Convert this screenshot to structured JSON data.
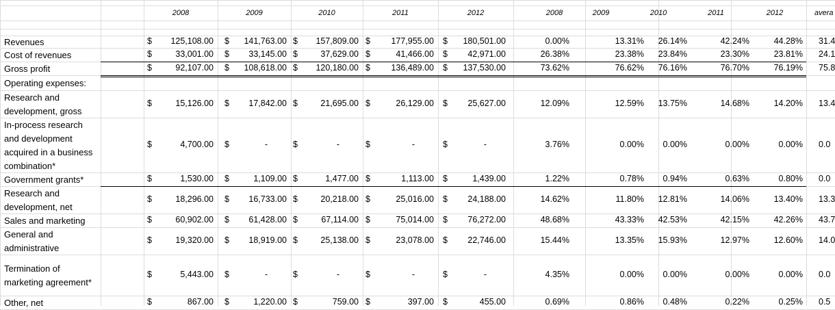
{
  "headers": {
    "years": [
      "2008",
      "2009",
      "2010",
      "2011",
      "2012"
    ],
    "pct_years": [
      "2008",
      "2009",
      "2010",
      "2011",
      "2012"
    ],
    "average": "avera"
  },
  "rows": [
    {
      "label": "Revenues",
      "values": [
        "125,108.00",
        "141,763.00",
        "157,809.00",
        "177,955.00",
        "180,501.00"
      ],
      "pct": [
        "0.00%",
        "13.31%",
        "26.14%",
        "42.24%",
        "44.28%"
      ],
      "avg": "31.4"
    },
    {
      "label": "Cost of revenues",
      "values": [
        "33,001.00",
        "33,145.00",
        "37,629.00",
        "41,466.00",
        "42,971.00"
      ],
      "pct": [
        "26.38%",
        "23.38%",
        "23.84%",
        "23.30%",
        "23.81%"
      ],
      "avg": "24.1"
    },
    {
      "label": "Gross profit",
      "values": [
        "92,107.00",
        "108,618.00",
        "120,180.00",
        "136,489.00",
        "137,530.00"
      ],
      "pct": [
        "73.62%",
        "76.62%",
        "76.16%",
        "76.70%",
        "76.19%"
      ],
      "avg": "75.8"
    },
    {
      "label": "Operating expenses:",
      "values": [],
      "pct": [],
      "avg": ""
    },
    {
      "label": "Research and development, gross",
      "values": [
        "15,126.00",
        "17,842.00",
        "21,695.00",
        "26,129.00",
        "25,627.00"
      ],
      "pct": [
        "12.09%",
        "12.59%",
        "13.75%",
        "14.68%",
        "14.20%"
      ],
      "avg": "13.4"
    },
    {
      "label": "In-process research and development acquired in a business combination*",
      "values": [
        "4,700.00",
        "-",
        "-",
        "-",
        "-"
      ],
      "pct": [
        "3.76%",
        "0.00%",
        "0.00%",
        "0.00%",
        "0.00%"
      ],
      "avg": "0.0"
    },
    {
      "label": "Government grants*",
      "values": [
        "1,530.00",
        "1,109.00",
        "1,477.00",
        "1,113.00",
        "1,439.00"
      ],
      "pct": [
        "1.22%",
        "0.78%",
        "0.94%",
        "0.63%",
        "0.80%"
      ],
      "avg": "0.0"
    },
    {
      "label": "Research and development, net",
      "values": [
        "18,296.00",
        "16,733.00",
        "20,218.00",
        "25,016.00",
        "24,188.00"
      ],
      "pct": [
        "14.62%",
        "11.80%",
        "12.81%",
        "14.06%",
        "13.40%"
      ],
      "avg": "13.3"
    },
    {
      "label": "Sales and marketing",
      "values": [
        "60,902.00",
        "61,428.00",
        "67,114.00",
        "75,014.00",
        "76,272.00"
      ],
      "pct": [
        "48.68%",
        "43.33%",
        "42.53%",
        "42.15%",
        "42.26%"
      ],
      "avg": "43.7"
    },
    {
      "label": "General and administrative",
      "values": [
        "19,320.00",
        "18,919.00",
        "25,138.00",
        "23,078.00",
        "22,746.00"
      ],
      "pct": [
        "15.44%",
        "13.35%",
        "15.93%",
        "12.97%",
        "12.60%"
      ],
      "avg": "14.0"
    },
    {
      "label": "Termination of marketing agreement*",
      "values": [
        "5,443.00",
        "-",
        "-",
        "-",
        "-"
      ],
      "pct": [
        "4.35%",
        "0.00%",
        "0.00%",
        "0.00%",
        "0.00%"
      ],
      "avg": "0.0"
    },
    {
      "label": "Other, net",
      "values": [
        "867.00",
        "1,220.00",
        "759.00",
        "397.00",
        "455.00"
      ],
      "pct": [
        "0.69%",
        "0.86%",
        "0.48%",
        "0.22%",
        "0.25%"
      ],
      "avg": "0.5"
    }
  ],
  "currency_symbol": "$"
}
